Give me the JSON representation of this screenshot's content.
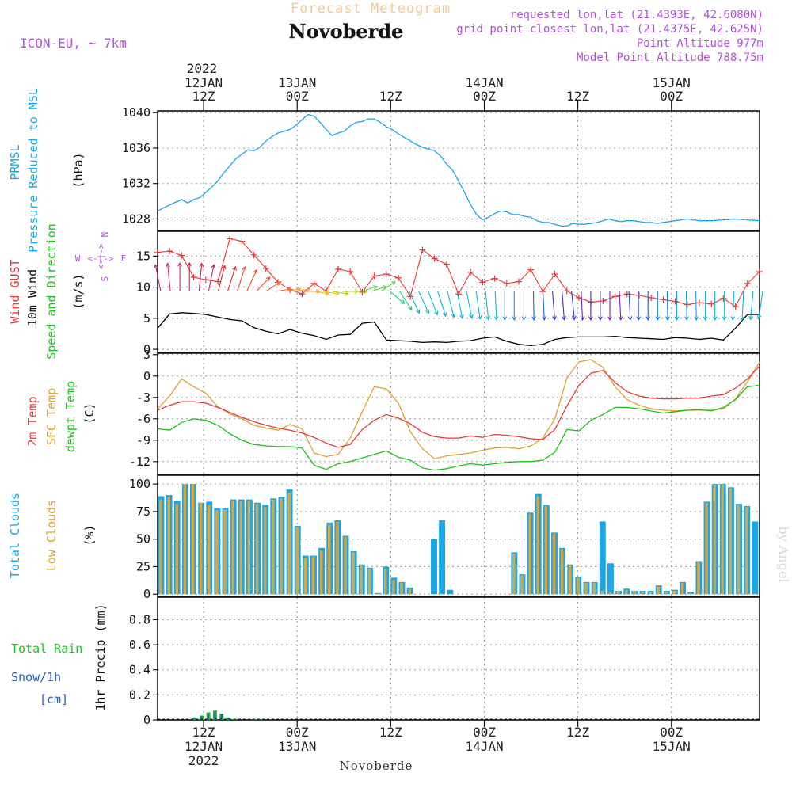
{
  "header": {
    "subtitle": "Forecast Meteogram",
    "title": "Novoberde",
    "model": "ICON-EU, ~ 7km",
    "requested": "requested lon,lat (21.4393E, 42.6080N)",
    "gridpoint": "grid point closest lon,lat (21.4375E, 42.625N)",
    "point_alt": "Point Altitude 977m",
    "model_alt": "Model Point Altitude 788.75m"
  },
  "footer": {
    "location": "Novoberde",
    "watermark": "by Angel"
  },
  "colors": {
    "pressure": "#1aa6e8",
    "gust": "#e83a3a",
    "wind": "#000000",
    "t2m": "#e83a3a",
    "sfc": "#e0a030",
    "dew": "#19c419",
    "total_cloud": "#1aa6e8",
    "low_cloud": "#d8a640",
    "rain": "#19c419",
    "snow": "#2a5cc8",
    "label_blue": "#1aa6e8",
    "label_green": "#19c419",
    "label_red": "#e83a3a",
    "label_orange": "#e0a030",
    "label_purple": "#b050d8"
  },
  "time_axis": {
    "top_year": "2022",
    "ticks": [
      {
        "pos": 0.0764,
        "day": "12JAN",
        "hour": "12Z"
      },
      {
        "pos": 0.2319,
        "day": "13JAN",
        "hour": "00Z"
      },
      {
        "pos": 0.3873,
        "day": "",
        "hour": "12Z"
      },
      {
        "pos": 0.5428,
        "day": "14JAN",
        "hour": "00Z"
      },
      {
        "pos": 0.6982,
        "day": "",
        "hour": "12Z"
      },
      {
        "pos": 0.8536,
        "day": "15JAN",
        "hour": "00Z"
      }
    ],
    "bottom": [
      {
        "pos": 0.0764,
        "hour": "12Z",
        "day": "12JAN",
        "year": "2022"
      },
      {
        "pos": 0.2319,
        "hour": "00Z",
        "day": "13JAN",
        "year": ""
      },
      {
        "pos": 0.3873,
        "hour": "12Z",
        "day": "",
        "year": ""
      },
      {
        "pos": 0.5428,
        "hour": "00Z",
        "day": "14JAN",
        "year": ""
      },
      {
        "pos": 0.6982,
        "hour": "12Z",
        "day": "",
        "year": ""
      },
      {
        "pos": 0.8536,
        "hour": "00Z",
        "day": "15JAN",
        "year": ""
      }
    ]
  },
  "chart_data": [
    {
      "type": "line",
      "name": "pressure",
      "labels": [
        "PRMSL",
        "Pressure Reduced to MSL",
        "(hPa)"
      ],
      "ylim": [
        1026.7,
        1040.2
      ],
      "yticks": [
        1028,
        1032,
        1036,
        1040
      ],
      "x": [
        0,
        0.02,
        0.04,
        0.05,
        0.06,
        0.07,
        0.08,
        0.09,
        0.1,
        0.11,
        0.12,
        0.13,
        0.14,
        0.15,
        0.16,
        0.17,
        0.18,
        0.19,
        0.2,
        0.21,
        0.22,
        0.23,
        0.24,
        0.25,
        0.26,
        0.27,
        0.28,
        0.29,
        0.3,
        0.31,
        0.32,
        0.33,
        0.34,
        0.35,
        0.36,
        0.37,
        0.38,
        0.39,
        0.4,
        0.41,
        0.42,
        0.43,
        0.44,
        0.45,
        0.46,
        0.47,
        0.48,
        0.49,
        0.5,
        0.51,
        0.52,
        0.53,
        0.54,
        0.55,
        0.56,
        0.57,
        0.58,
        0.59,
        0.6,
        0.61,
        0.62,
        0.63,
        0.64,
        0.65,
        0.66,
        0.67,
        0.68,
        0.69,
        0.7,
        0.71,
        0.72,
        0.73,
        0.74,
        0.75,
        0.76,
        0.77,
        0.78,
        0.79,
        0.8,
        0.81,
        0.82,
        0.83,
        0.84,
        0.85,
        0.86,
        0.87,
        0.88,
        0.89,
        0.9,
        0.92,
        0.94,
        0.96,
        0.98,
        1.0
      ],
      "values": [
        1028.9,
        1029.6,
        1030.2,
        1029.8,
        1030.2,
        1030.4,
        1031.0,
        1031.6,
        1032.3,
        1033.2,
        1034.0,
        1034.8,
        1035.3,
        1035.8,
        1035.7,
        1036.1,
        1036.8,
        1037.3,
        1037.7,
        1037.9,
        1038.1,
        1038.6,
        1039.2,
        1039.8,
        1039.6,
        1038.9,
        1038.1,
        1037.4,
        1037.7,
        1037.9,
        1038.5,
        1038.9,
        1039.0,
        1039.3,
        1039.3,
        1038.9,
        1038.4,
        1038.1,
        1037.6,
        1037.2,
        1036.8,
        1036.4,
        1036.1,
        1035.9,
        1035.7,
        1035.1,
        1034.2,
        1033.5,
        1032.3,
        1031.0,
        1029.6,
        1028.5,
        1027.9,
        1028.2,
        1028.6,
        1028.9,
        1028.8,
        1028.5,
        1028.5,
        1028.3,
        1028.2,
        1027.8,
        1027.6,
        1027.6,
        1027.4,
        1027.2,
        1027.2,
        1027.5,
        1027.4,
        1027.4,
        1027.5,
        1027.6,
        1027.8,
        1028.0,
        1027.8,
        1027.7,
        1027.8,
        1027.8,
        1027.7,
        1027.6,
        1027.6,
        1027.5,
        1027.6,
        1027.7,
        1027.8,
        1027.9,
        1028.0,
        1027.9,
        1027.8,
        1027.8,
        1027.9,
        1028.0,
        1027.9,
        1027.8
      ]
    },
    {
      "type": "line",
      "name": "wind",
      "labels": [
        "Wind GUST",
        "10m Wind",
        "Speed and Direction",
        "(m/s)"
      ],
      "compass": [
        "N",
        "W",
        "E",
        "S"
      ],
      "ylim": [
        -0.5,
        19
      ],
      "yticks": [
        0,
        5,
        10,
        15
      ],
      "x": [
        0,
        0.02,
        0.04,
        0.06,
        0.08,
        0.1,
        0.12,
        0.14,
        0.16,
        0.18,
        0.2,
        0.22,
        0.24,
        0.26,
        0.28,
        0.3,
        0.32,
        0.34,
        0.36,
        0.38,
        0.4,
        0.42,
        0.44,
        0.46,
        0.48,
        0.5,
        0.52,
        0.54,
        0.56,
        0.58,
        0.6,
        0.62,
        0.64,
        0.66,
        0.68,
        0.7,
        0.72,
        0.74,
        0.76,
        0.78,
        0.8,
        0.82,
        0.84,
        0.86,
        0.88,
        0.9,
        0.92,
        0.94,
        0.96,
        0.98,
        1.0
      ],
      "gust": [
        15.6,
        15.8,
        15.1,
        11.6,
        11.2,
        10.9,
        17.8,
        17.4,
        15.2,
        13.0,
        10.8,
        9.6,
        8.9,
        10.6,
        9.4,
        12.9,
        12.5,
        9.2,
        11.8,
        12.1,
        11.5,
        8.5,
        16.0,
        14.6,
        13.7,
        8.9,
        12.4,
        10.8,
        11.4,
        10.6,
        10.9,
        12.8,
        9.3,
        12.1,
        9.4,
        8.3,
        7.6,
        7.8,
        8.5,
        8.9,
        8.7,
        8.3,
        8.0,
        7.7,
        7.2,
        7.5,
        7.3,
        8.2,
        6.9,
        10.6,
        12.5
      ],
      "speed": [
        3.4,
        5.7,
        5.9,
        5.8,
        5.6,
        5.2,
        4.8,
        4.6,
        3.5,
        2.9,
        2.5,
        3.2,
        2.6,
        2.2,
        1.6,
        2.3,
        2.4,
        4.2,
        4.4,
        1.5,
        1.4,
        1.3,
        1.1,
        1.2,
        1.1,
        1.3,
        1.4,
        1.8,
        2.0,
        1.3,
        0.8,
        0.6,
        0.8,
        1.6,
        1.9,
        2.0,
        2.0,
        2.0,
        2.1,
        1.9,
        1.8,
        1.7,
        1.6,
        1.9,
        1.8,
        1.6,
        1.8,
        1.5,
        3.4,
        5.6,
        5.6
      ],
      "direction_deg": [
        20,
        10,
        0,
        350,
        340,
        335,
        330,
        320,
        300,
        290,
        275,
        275,
        270,
        265,
        265,
        270,
        270,
        280,
        290,
        245,
        230,
        220,
        215,
        210,
        205,
        200,
        195,
        190,
        185,
        180,
        180,
        182,
        185,
        188,
        190,
        185,
        180,
        180,
        185,
        185,
        180,
        180,
        182,
        180,
        182,
        180,
        180,
        180,
        175,
        170,
        165
      ],
      "arrow_colors": [
        "#c0306a",
        "#d02050",
        "#e02a2a",
        "#e84a2a",
        "#f07030",
        "#f59a20",
        "#f0c020",
        "#b8d020",
        "#60d040",
        "#20c880",
        "#10c0c0",
        "#10b0d8",
        "#10b8d8",
        "#10c0c0",
        "#2a8ae0",
        "#2060e0",
        "#4030d0",
        "#6020c8",
        "#8020c0",
        "#2a5ad0",
        "#1080e0",
        "#10a0d8",
        "#10b0c8",
        "#10b8c8",
        "#10b8c0"
      ]
    },
    {
      "type": "line",
      "name": "temperature",
      "labels": [
        "2m Temp",
        "SFC Temp",
        "dewpt Temp",
        "(C)"
      ],
      "ylim": [
        -13.8,
        3.2
      ],
      "yticks": [
        3,
        0,
        -3,
        -6,
        -9,
        -12
      ],
      "x": [
        0,
        0.02,
        0.04,
        0.06,
        0.08,
        0.1,
        0.12,
        0.14,
        0.16,
        0.18,
        0.2,
        0.22,
        0.24,
        0.26,
        0.28,
        0.3,
        0.32,
        0.34,
        0.36,
        0.38,
        0.4,
        0.42,
        0.44,
        0.46,
        0.48,
        0.5,
        0.52,
        0.54,
        0.56,
        0.58,
        0.6,
        0.62,
        0.64,
        0.66,
        0.68,
        0.7,
        0.72,
        0.74,
        0.76,
        0.78,
        0.8,
        0.82,
        0.84,
        0.86,
        0.88,
        0.9,
        0.92,
        0.94,
        0.96,
        0.98,
        1.0
      ],
      "t2m": [
        -4.8,
        -4.1,
        -3.6,
        -3.6,
        -3.8,
        -4.4,
        -5.1,
        -5.8,
        -6.4,
        -6.9,
        -7.3,
        -7.6,
        -8.0,
        -8.6,
        -9.4,
        -10.0,
        -9.6,
        -7.5,
        -6.2,
        -5.4,
        -5.9,
        -6.7,
        -7.9,
        -8.5,
        -8.7,
        -8.7,
        -8.4,
        -8.6,
        -8.2,
        -8.3,
        -8.5,
        -8.8,
        -8.9,
        -7.5,
        -4.2,
        -1.3,
        0.4,
        0.8,
        -0.9,
        -2.2,
        -2.8,
        -3.1,
        -3.2,
        -3.2,
        -3.1,
        -3.1,
        -2.8,
        -2.6,
        -1.7,
        -0.4,
        1.4
      ],
      "sfc": [
        -4.6,
        -2.8,
        -0.4,
        -1.5,
        -2.4,
        -4.3,
        -5.3,
        -6.0,
        -6.9,
        -7.3,
        -7.6,
        -6.8,
        -7.4,
        -10.8,
        -11.3,
        -11.0,
        -8.7,
        -5.0,
        -1.5,
        -1.8,
        -3.8,
        -7.8,
        -10.2,
        -11.6,
        -11.2,
        -11.0,
        -10.8,
        -10.4,
        -10.1,
        -10.0,
        -10.2,
        -9.8,
        -8.7,
        -6.0,
        -0.3,
        2.0,
        2.3,
        1.2,
        -1.5,
        -3.3,
        -4.1,
        -4.6,
        -4.8,
        -4.9,
        -4.8,
        -4.8,
        -4.8,
        -4.6,
        -3.2,
        -0.8,
        2.0
      ],
      "dew": [
        -7.4,
        -7.6,
        -6.5,
        -6.0,
        -6.2,
        -6.9,
        -8.1,
        -9.0,
        -9.6,
        -9.8,
        -9.9,
        -9.9,
        -10.1,
        -12.5,
        -13.1,
        -12.3,
        -12.0,
        -11.5,
        -11.0,
        -10.5,
        -11.4,
        -11.8,
        -12.9,
        -13.2,
        -13.0,
        -12.6,
        -12.3,
        -12.5,
        -12.3,
        -12.1,
        -12.0,
        -12.0,
        -11.8,
        -10.7,
        -7.5,
        -7.7,
        -6.2,
        -5.4,
        -4.4,
        -4.4,
        -4.6,
        -4.9,
        -5.2,
        -5.0,
        -4.8,
        -4.7,
        -4.9,
        -4.4,
        -3.3,
        -1.5,
        -1.3
      ]
    },
    {
      "type": "bar",
      "name": "clouds",
      "labels": [
        "Total Clouds",
        "Low Clouds",
        "(%)"
      ],
      "ylim": [
        -2,
        108
      ],
      "yticks": [
        0,
        25,
        50,
        75,
        100
      ],
      "total": [
        89,
        90,
        85,
        100,
        100,
        83,
        84,
        78,
        78,
        86,
        86,
        86,
        83,
        81,
        87,
        88,
        95,
        62,
        35,
        35,
        42,
        65,
        67,
        53,
        39,
        27,
        24,
        1,
        25,
        15,
        11,
        6,
        0,
        0,
        50,
        67,
        4,
        0,
        0,
        0,
        0,
        0,
        0,
        0,
        38,
        18,
        74,
        91,
        81,
        56,
        42,
        27,
        16,
        11,
        11,
        66,
        28,
        3,
        5,
        3,
        3,
        3,
        8,
        3,
        4,
        11,
        2,
        30,
        84,
        100,
        100,
        97,
        82,
        80,
        66
      ],
      "low": [
        86,
        88,
        82,
        100,
        100,
        83,
        81,
        76,
        77,
        85,
        85,
        85,
        82,
        79,
        86,
        87,
        92,
        61,
        33,
        34,
        40,
        63,
        66,
        52,
        38,
        26,
        23,
        1,
        23,
        13,
        10,
        5,
        0,
        0,
        0,
        0,
        0,
        0,
        0,
        0,
        0,
        0,
        0,
        0,
        37,
        17,
        73,
        89,
        80,
        55,
        41,
        26,
        15,
        10,
        10,
        3,
        2,
        3,
        4,
        3,
        2,
        2,
        7,
        2,
        3,
        10,
        1,
        29,
        83,
        99,
        99,
        96,
        81,
        79,
        0
      ]
    },
    {
      "type": "bar",
      "name": "precipitation",
      "labels": [
        "Total Rain",
        "Snow/1h",
        "[cm]",
        "1hr Precip (mm)"
      ],
      "ylim": [
        0,
        0.98
      ],
      "yticks": [
        0,
        0.2,
        0.4,
        0.6,
        0.8
      ],
      "bars": [
        [
          0.058,
          0.005,
          0.02
        ],
        [
          0.07,
          0.005,
          0.035
        ],
        [
          0.081,
          0.005,
          0.06
        ],
        [
          0.092,
          0.005,
          0.075
        ],
        [
          0.103,
          0.005,
          0.05
        ],
        [
          0.114,
          0.005,
          0.02
        ],
        [
          0.125,
          0.005,
          0.008
        ],
        [
          0.158,
          0.004,
          0.004
        ],
        [
          0.168,
          0.004,
          0.006
        ]
      ]
    }
  ]
}
